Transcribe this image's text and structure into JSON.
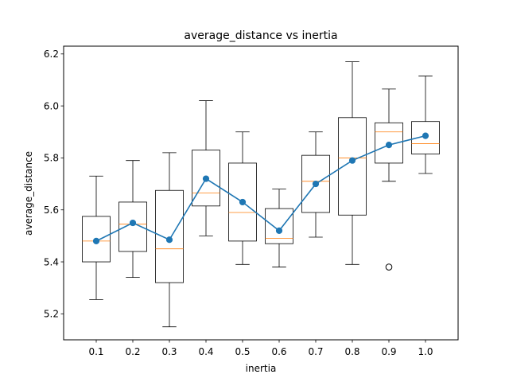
{
  "chart_data": {
    "type": "box",
    "title": "average_distance vs inertia",
    "xlabel": "inertia",
    "ylabel": "average_distance",
    "categories": [
      "0.1",
      "0.2",
      "0.3",
      "0.4",
      "0.5",
      "0.6",
      "0.7",
      "0.8",
      "0.9",
      "1.0"
    ],
    "ylim": [
      5.1,
      6.23
    ],
    "yticks": [
      "5.2",
      "5.4",
      "5.6",
      "5.8",
      "6.0",
      "6.2"
    ],
    "grid": false,
    "boxes": [
      {
        "category": "0.1",
        "whisker_low": 5.255,
        "q1": 5.4,
        "median": 5.48,
        "q3": 5.575,
        "whisker_high": 5.73,
        "outliers": []
      },
      {
        "category": "0.2",
        "whisker_low": 5.34,
        "q1": 5.44,
        "median": 5.545,
        "q3": 5.63,
        "whisker_high": 5.79,
        "outliers": []
      },
      {
        "category": "0.3",
        "whisker_low": 5.15,
        "q1": 5.32,
        "median": 5.45,
        "q3": 5.675,
        "whisker_high": 5.82,
        "outliers": []
      },
      {
        "category": "0.4",
        "whisker_low": 5.5,
        "q1": 5.615,
        "median": 5.665,
        "q3": 5.83,
        "whisker_high": 6.02,
        "outliers": []
      },
      {
        "category": "0.5",
        "whisker_low": 5.39,
        "q1": 5.48,
        "median": 5.59,
        "q3": 5.78,
        "whisker_high": 5.9,
        "outliers": []
      },
      {
        "category": "0.6",
        "whisker_low": 5.38,
        "q1": 5.47,
        "median": 5.49,
        "q3": 5.605,
        "whisker_high": 5.68,
        "outliers": []
      },
      {
        "category": "0.7",
        "whisker_low": 5.495,
        "q1": 5.59,
        "median": 5.71,
        "q3": 5.81,
        "whisker_high": 5.9,
        "outliers": []
      },
      {
        "category": "0.8",
        "whisker_low": 5.39,
        "q1": 5.58,
        "median": 5.8,
        "q3": 5.955,
        "whisker_high": 6.17,
        "outliers": []
      },
      {
        "category": "0.9",
        "whisker_low": 5.71,
        "q1": 5.78,
        "median": 5.9,
        "q3": 5.935,
        "whisker_high": 6.065,
        "outliers": [
          5.38
        ]
      },
      {
        "category": "1.0",
        "whisker_low": 5.74,
        "q1": 5.815,
        "median": 5.855,
        "q3": 5.94,
        "whisker_high": 6.115,
        "outliers": []
      }
    ],
    "mean_series": {
      "values": [
        5.48,
        5.55,
        5.485,
        5.72,
        5.63,
        5.52,
        5.7,
        5.79,
        5.85,
        5.885
      ],
      "color": "#1f77b4"
    },
    "colors": {
      "box": "#000000",
      "median": "#ff7f0e",
      "mean_line": "#1f77b4"
    }
  }
}
